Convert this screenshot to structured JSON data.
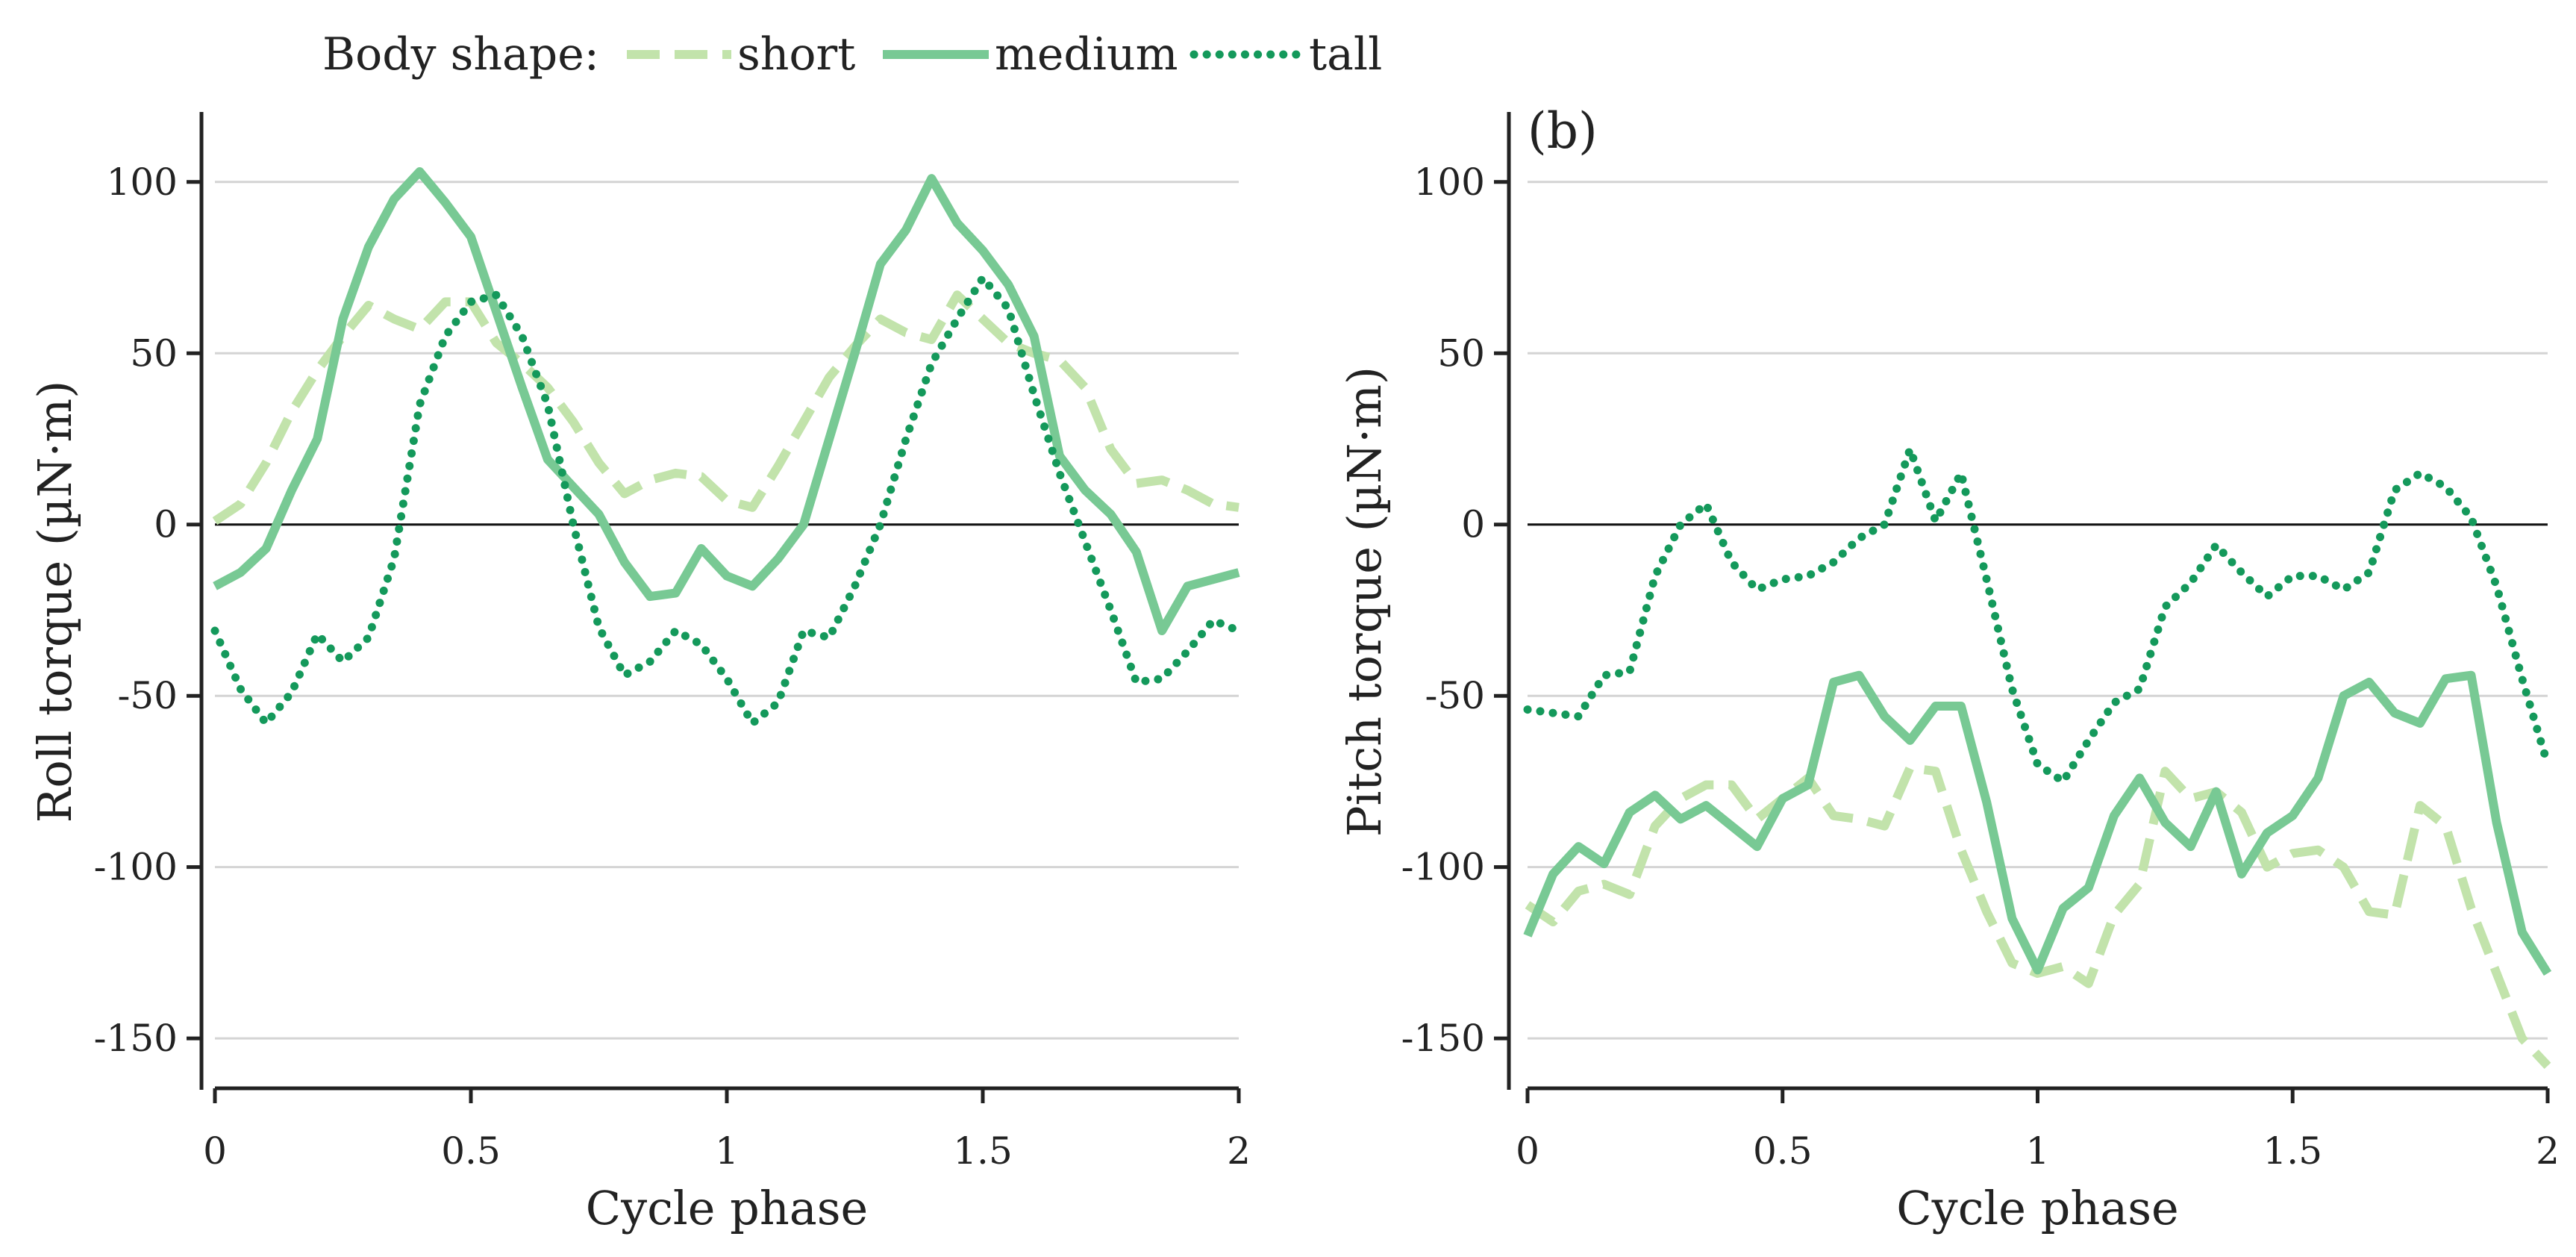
{
  "legend": {
    "title": "Body shape:",
    "entries": [
      {
        "key": "short",
        "label": "short"
      },
      {
        "key": "medium",
        "label": "medium"
      },
      {
        "key": "tall",
        "label": "tall"
      }
    ]
  },
  "series_styles": {
    "short": {
      "color": "#c2e3ab",
      "dash": "dashed"
    },
    "medium": {
      "color": "#78c994",
      "dash": "solid"
    },
    "tall": {
      "color": "#14995b",
      "dash": "dotted"
    }
  },
  "chart_data": [
    {
      "type": "line",
      "panel_label": "",
      "title": "",
      "xlabel": "Cycle phase",
      "ylabel": "Roll torque (µN·m)",
      "xlim": [
        0,
        2
      ],
      "ylim": [
        -165,
        120
      ],
      "xticks": [
        0,
        0.5,
        1,
        1.5,
        2
      ],
      "xtick_labels": [
        "0",
        "0.5",
        "1",
        "1.5",
        "2"
      ],
      "yticks": [
        100,
        50,
        0,
        -50,
        -100,
        -150
      ],
      "ytick_labels": [
        "100",
        "50",
        "0",
        "-50",
        "-100",
        "-150"
      ],
      "grid": true,
      "zero_line": true,
      "x": [
        0,
        0.05,
        0.1,
        0.15,
        0.2,
        0.25,
        0.3,
        0.35,
        0.4,
        0.45,
        0.5,
        0.55,
        0.6,
        0.65,
        0.7,
        0.75,
        0.8,
        0.85,
        0.9,
        0.95,
        1,
        1.05,
        1.1,
        1.15,
        1.2,
        1.25,
        1.3,
        1.35,
        1.4,
        1.45,
        1.5,
        1.55,
        1.6,
        1.65,
        1.7,
        1.75,
        1.8,
        1.85,
        1.9,
        1.95,
        2
      ],
      "series": [
        {
          "name": "short",
          "values": [
            1,
            6,
            18,
            33,
            45,
            55,
            64,
            60,
            57,
            65,
            65,
            53,
            47,
            40,
            30,
            18,
            9,
            13,
            15,
            14,
            7,
            5,
            17,
            30,
            43,
            52,
            60,
            56,
            54,
            67,
            60,
            53,
            50,
            48,
            40,
            22,
            12,
            13,
            10,
            6,
            5
          ]
        },
        {
          "name": "medium",
          "values": [
            -18,
            -14,
            -7,
            10,
            25,
            60,
            81,
            95,
            103,
            94,
            84,
            62,
            40,
            19,
            11,
            3,
            -11,
            -21,
            -20,
            -7,
            -15,
            -18,
            -10,
            0,
            25,
            50,
            76,
            86,
            101,
            88,
            80,
            70,
            55,
            20,
            10,
            3,
            -8,
            -31,
            -18,
            -16,
            -14
          ]
        },
        {
          "name": "tall",
          "values": [
            -31,
            -48,
            -58,
            -49,
            -32,
            -40,
            -33,
            -10,
            35,
            55,
            65,
            67,
            55,
            35,
            0,
            -30,
            -44,
            -40,
            -31,
            -35,
            -45,
            -58,
            -52,
            -31,
            -33,
            -18,
            0,
            25,
            47,
            60,
            72,
            63,
            38,
            15,
            -5,
            -25,
            -46,
            -45,
            -37,
            -28,
            -31
          ]
        }
      ]
    },
    {
      "type": "line",
      "panel_label": "(b)",
      "title": "",
      "xlabel": "Cycle phase",
      "ylabel": "Pitch torque (µN·m)",
      "xlim": [
        0,
        2
      ],
      "ylim": [
        -165,
        120
      ],
      "xticks": [
        0,
        0.5,
        1,
        1.5,
        2
      ],
      "xtick_labels": [
        "0",
        "0.5",
        "1",
        "1.5",
        "2"
      ],
      "yticks": [
        100,
        50,
        0,
        -50,
        -100,
        -150
      ],
      "ytick_labels": [
        "100",
        "50",
        "0",
        "-50",
        "-100",
        "-150"
      ],
      "grid": true,
      "zero_line": true,
      "x": [
        0,
        0.05,
        0.1,
        0.15,
        0.2,
        0.25,
        0.3,
        0.35,
        0.4,
        0.45,
        0.5,
        0.55,
        0.6,
        0.65,
        0.7,
        0.75,
        0.8,
        0.85,
        0.9,
        0.95,
        1,
        1.05,
        1.1,
        1.15,
        1.2,
        1.25,
        1.3,
        1.35,
        1.4,
        1.45,
        1.5,
        1.55,
        1.6,
        1.65,
        1.7,
        1.75,
        1.8,
        1.85,
        1.9,
        1.95,
        2
      ],
      "series": [
        {
          "name": "short",
          "values": [
            -111,
            -116,
            -107,
            -105,
            -108,
            -88,
            -80,
            -76,
            -76,
            -86,
            -80,
            -74,
            -85,
            -86,
            -88,
            -71,
            -72,
            -95,
            -113,
            -128,
            -131,
            -129,
            -134,
            -114,
            -105,
            -72,
            -80,
            -78,
            -84,
            -100,
            -96,
            -95,
            -100,
            -113,
            -114,
            -82,
            -88,
            -112,
            -131,
            -150,
            -158
          ]
        },
        {
          "name": "medium",
          "values": [
            -120,
            -102,
            -94,
            -99,
            -84,
            -79,
            -86,
            -82,
            -88,
            -94,
            -80,
            -76,
            -46,
            -44,
            -56,
            -63,
            -53,
            -53,
            -81,
            -115,
            -130,
            -112,
            -106,
            -85,
            -74,
            -87,
            -94,
            -78,
            -102,
            -90,
            -85,
            -74,
            -50,
            -46,
            -55,
            -58,
            -45,
            -44,
            -87,
            -119,
            -131
          ]
        },
        {
          "name": "tall",
          "values": [
            -54,
            -55,
            -56,
            -44,
            -43,
            -15,
            0,
            6,
            -11,
            -19,
            -16,
            -15,
            -11,
            -4,
            0,
            22,
            1,
            15,
            -16,
            -48,
            -70,
            -75,
            -63,
            -52,
            -48,
            -24,
            -17,
            -6,
            -14,
            -21,
            -15,
            -15,
            -19,
            -14,
            10,
            15,
            11,
            2,
            -18,
            -45,
            -70
          ]
        }
      ]
    }
  ]
}
